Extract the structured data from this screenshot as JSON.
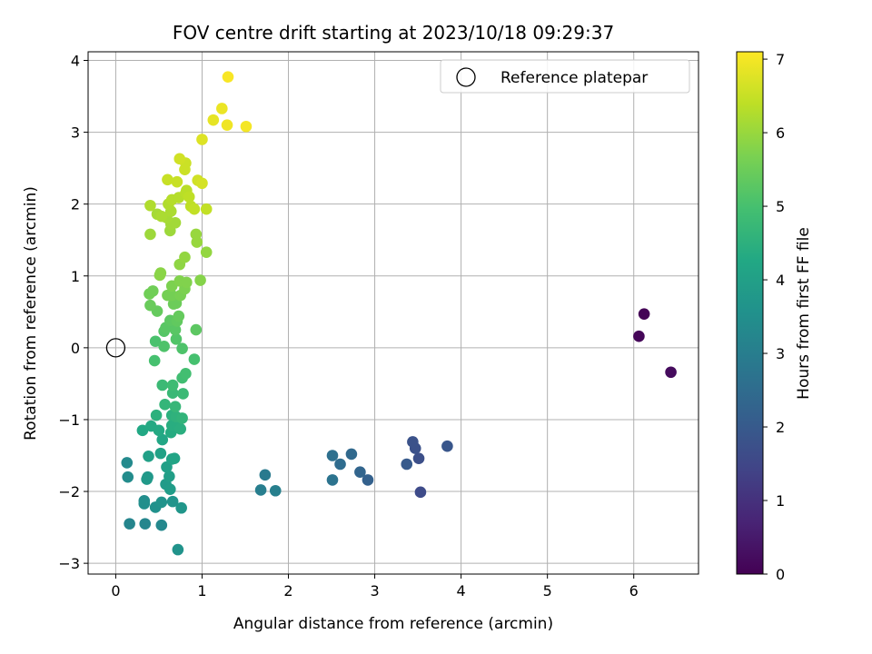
{
  "chart_data": {
    "type": "scatter",
    "title": "FOV centre drift starting at 2023/10/18 09:29:37",
    "xlabel": "Angular distance from reference (arcmin)",
    "ylabel": "Rotation from reference (arcmin)",
    "xlim": [
      -0.32,
      6.75
    ],
    "ylim": [
      -3.15,
      4.12
    ],
    "xticks": [
      0,
      1,
      2,
      3,
      4,
      5,
      6
    ],
    "yticks": [
      -3,
      -2,
      -1,
      0,
      1,
      2,
      3,
      4
    ],
    "grid": true,
    "legend": {
      "placement": "upper-right",
      "entries": [
        "Reference platepar"
      ]
    },
    "reference_point": {
      "x": 0,
      "y": 0
    },
    "colorbar": {
      "label": "Hours from first FF file",
      "range": [
        0,
        7.1
      ],
      "ticks": [
        0,
        1,
        2,
        3,
        4,
        5,
        6,
        7
      ],
      "colormap": "viridis"
    },
    "points": [
      {
        "x": 6.12,
        "y": 0.47,
        "c": 0.05
      },
      {
        "x": 6.06,
        "y": 0.16,
        "c": 0.1
      },
      {
        "x": 6.43,
        "y": -0.34,
        "c": 0.2
      },
      {
        "x": 3.53,
        "y": -2.01,
        "c": 1.6
      },
      {
        "x": 3.51,
        "y": -1.54,
        "c": 1.7
      },
      {
        "x": 3.47,
        "y": -1.4,
        "c": 1.75
      },
      {
        "x": 3.44,
        "y": -1.31,
        "c": 1.8
      },
      {
        "x": 3.84,
        "y": -1.37,
        "c": 1.9
      },
      {
        "x": 3.37,
        "y": -1.62,
        "c": 2.0
      },
      {
        "x": 2.92,
        "y": -1.84,
        "c": 2.2
      },
      {
        "x": 2.83,
        "y": -1.73,
        "c": 2.3
      },
      {
        "x": 2.73,
        "y": -1.48,
        "c": 2.4
      },
      {
        "x": 2.6,
        "y": -1.62,
        "c": 2.5
      },
      {
        "x": 2.51,
        "y": -1.5,
        "c": 2.6
      },
      {
        "x": 2.51,
        "y": -1.84,
        "c": 2.7
      },
      {
        "x": 1.73,
        "y": -1.77,
        "c": 2.9
      },
      {
        "x": 1.68,
        "y": -1.98,
        "c": 3.0
      },
      {
        "x": 1.85,
        "y": -1.99,
        "c": 3.05
      },
      {
        "x": 0.16,
        "y": -2.45,
        "c": 3.2
      },
      {
        "x": 0.34,
        "y": -2.45,
        "c": 3.25
      },
      {
        "x": 0.53,
        "y": -2.47,
        "c": 3.3
      },
      {
        "x": 0.13,
        "y": -1.6,
        "c": 3.35
      },
      {
        "x": 0.14,
        "y": -1.8,
        "c": 3.4
      },
      {
        "x": 0.33,
        "y": -2.13,
        "c": 3.45
      },
      {
        "x": 0.33,
        "y": -2.17,
        "c": 3.5
      },
      {
        "x": 0.46,
        "y": -2.22,
        "c": 3.55
      },
      {
        "x": 0.53,
        "y": -2.15,
        "c": 3.6
      },
      {
        "x": 0.72,
        "y": -2.81,
        "c": 3.6
      },
      {
        "x": 0.66,
        "y": -2.14,
        "c": 3.65
      },
      {
        "x": 0.76,
        "y": -2.23,
        "c": 3.7
      },
      {
        "x": 0.37,
        "y": -1.8,
        "c": 3.75
      },
      {
        "x": 0.36,
        "y": -1.83,
        "c": 3.8
      },
      {
        "x": 0.58,
        "y": -1.9,
        "c": 3.85
      },
      {
        "x": 0.63,
        "y": -1.97,
        "c": 3.9
      },
      {
        "x": 0.62,
        "y": -1.79,
        "c": 3.95
      },
      {
        "x": 0.59,
        "y": -1.66,
        "c": 4.0
      },
      {
        "x": 0.38,
        "y": -1.51,
        "c": 4.0
      },
      {
        "x": 0.52,
        "y": -1.47,
        "c": 4.05
      },
      {
        "x": 0.65,
        "y": -1.55,
        "c": 4.1
      },
      {
        "x": 0.68,
        "y": -1.54,
        "c": 4.15
      },
      {
        "x": 0.54,
        "y": -1.28,
        "c": 4.2
      },
      {
        "x": 0.31,
        "y": -1.15,
        "c": 4.25
      },
      {
        "x": 0.41,
        "y": -1.09,
        "c": 4.3
      },
      {
        "x": 0.5,
        "y": -1.15,
        "c": 4.3
      },
      {
        "x": 0.64,
        "y": -1.18,
        "c": 4.35
      },
      {
        "x": 0.65,
        "y": -1.08,
        "c": 4.4
      },
      {
        "x": 0.72,
        "y": -1.1,
        "c": 4.4
      },
      {
        "x": 0.75,
        "y": -1.13,
        "c": 4.45
      },
      {
        "x": 0.47,
        "y": -0.94,
        "c": 4.5
      },
      {
        "x": 0.65,
        "y": -0.94,
        "c": 4.5
      },
      {
        "x": 0.7,
        "y": -0.96,
        "c": 4.55
      },
      {
        "x": 0.77,
        "y": -0.98,
        "c": 4.6
      },
      {
        "x": 0.57,
        "y": -0.79,
        "c": 4.65
      },
      {
        "x": 0.69,
        "y": -0.82,
        "c": 4.7
      },
      {
        "x": 0.66,
        "y": -0.63,
        "c": 4.75
      },
      {
        "x": 0.78,
        "y": -0.64,
        "c": 4.8
      },
      {
        "x": 0.54,
        "y": -0.52,
        "c": 4.8
      },
      {
        "x": 0.66,
        "y": -0.52,
        "c": 4.85
      },
      {
        "x": 0.77,
        "y": -0.42,
        "c": 4.9
      },
      {
        "x": 0.81,
        "y": -0.36,
        "c": 4.95
      },
      {
        "x": 0.45,
        "y": -0.18,
        "c": 5.0
      },
      {
        "x": 0.91,
        "y": -0.16,
        "c": 5.0
      },
      {
        "x": 0.46,
        "y": 0.09,
        "c": 5.05
      },
      {
        "x": 0.56,
        "y": 0.02,
        "c": 5.1
      },
      {
        "x": 0.77,
        "y": -0.01,
        "c": 5.1
      },
      {
        "x": 0.7,
        "y": 0.12,
        "c": 5.15
      },
      {
        "x": 0.56,
        "y": 0.23,
        "c": 5.2
      },
      {
        "x": 0.58,
        "y": 0.28,
        "c": 5.25
      },
      {
        "x": 0.69,
        "y": 0.25,
        "c": 5.25
      },
      {
        "x": 0.93,
        "y": 0.25,
        "c": 5.3
      },
      {
        "x": 0.63,
        "y": 0.38,
        "c": 5.3
      },
      {
        "x": 0.71,
        "y": 0.37,
        "c": 5.35
      },
      {
        "x": 0.73,
        "y": 0.44,
        "c": 5.4
      },
      {
        "x": 0.48,
        "y": 0.51,
        "c": 5.4
      },
      {
        "x": 0.4,
        "y": 0.59,
        "c": 5.45
      },
      {
        "x": 0.67,
        "y": 0.61,
        "c": 5.5
      },
      {
        "x": 0.7,
        "y": 0.62,
        "c": 5.5
      },
      {
        "x": 0.39,
        "y": 0.75,
        "c": 5.55
      },
      {
        "x": 0.43,
        "y": 0.79,
        "c": 5.55
      },
      {
        "x": 0.6,
        "y": 0.73,
        "c": 5.6
      },
      {
        "x": 0.65,
        "y": 0.73,
        "c": 5.6
      },
      {
        "x": 0.75,
        "y": 0.73,
        "c": 5.65
      },
      {
        "x": 0.8,
        "y": 0.82,
        "c": 5.7
      },
      {
        "x": 0.65,
        "y": 0.86,
        "c": 5.7
      },
      {
        "x": 0.74,
        "y": 0.93,
        "c": 5.75
      },
      {
        "x": 0.82,
        "y": 0.91,
        "c": 5.75
      },
      {
        "x": 0.98,
        "y": 0.94,
        "c": 5.8
      },
      {
        "x": 0.52,
        "y": 1.04,
        "c": 5.85
      },
      {
        "x": 0.51,
        "y": 1.01,
        "c": 5.85
      },
      {
        "x": 0.74,
        "y": 1.16,
        "c": 5.9
      },
      {
        "x": 0.8,
        "y": 1.26,
        "c": 5.95
      },
      {
        "x": 1.05,
        "y": 1.33,
        "c": 5.95
      },
      {
        "x": 0.94,
        "y": 1.47,
        "c": 6.0
      },
      {
        "x": 0.93,
        "y": 1.58,
        "c": 6.0
      },
      {
        "x": 0.4,
        "y": 1.58,
        "c": 6.05
      },
      {
        "x": 0.63,
        "y": 1.63,
        "c": 6.05
      },
      {
        "x": 0.64,
        "y": 1.72,
        "c": 6.1
      },
      {
        "x": 0.69,
        "y": 1.74,
        "c": 6.1
      },
      {
        "x": 0.59,
        "y": 1.81,
        "c": 6.15
      },
      {
        "x": 0.48,
        "y": 1.86,
        "c": 6.15
      },
      {
        "x": 0.53,
        "y": 1.83,
        "c": 6.2
      },
      {
        "x": 0.64,
        "y": 1.9,
        "c": 6.2
      },
      {
        "x": 0.61,
        "y": 2.0,
        "c": 6.25
      },
      {
        "x": 0.4,
        "y": 1.98,
        "c": 6.25
      },
      {
        "x": 0.65,
        "y": 2.06,
        "c": 6.3
      },
      {
        "x": 0.73,
        "y": 2.09,
        "c": 6.3
      },
      {
        "x": 0.81,
        "y": 2.15,
        "c": 6.35
      },
      {
        "x": 0.82,
        "y": 2.19,
        "c": 6.35
      },
      {
        "x": 0.85,
        "y": 2.1,
        "c": 6.4
      },
      {
        "x": 0.87,
        "y": 1.97,
        "c": 6.4
      },
      {
        "x": 0.91,
        "y": 1.93,
        "c": 6.45
      },
      {
        "x": 1.05,
        "y": 1.93,
        "c": 6.45
      },
      {
        "x": 0.6,
        "y": 2.34,
        "c": 6.5
      },
      {
        "x": 0.71,
        "y": 2.31,
        "c": 6.5
      },
      {
        "x": 0.8,
        "y": 2.48,
        "c": 6.55
      },
      {
        "x": 0.81,
        "y": 2.57,
        "c": 6.55
      },
      {
        "x": 0.74,
        "y": 2.63,
        "c": 6.6
      },
      {
        "x": 0.95,
        "y": 2.33,
        "c": 6.6
      },
      {
        "x": 1.0,
        "y": 2.29,
        "c": 6.65
      },
      {
        "x": 1.0,
        "y": 2.9,
        "c": 6.75
      },
      {
        "x": 1.13,
        "y": 3.17,
        "c": 6.85
      },
      {
        "x": 1.23,
        "y": 3.33,
        "c": 6.9
      },
      {
        "x": 1.29,
        "y": 3.1,
        "c": 6.95
      },
      {
        "x": 1.51,
        "y": 3.08,
        "c": 7.0
      },
      {
        "x": 1.3,
        "y": 3.77,
        "c": 7.05
      }
    ]
  }
}
